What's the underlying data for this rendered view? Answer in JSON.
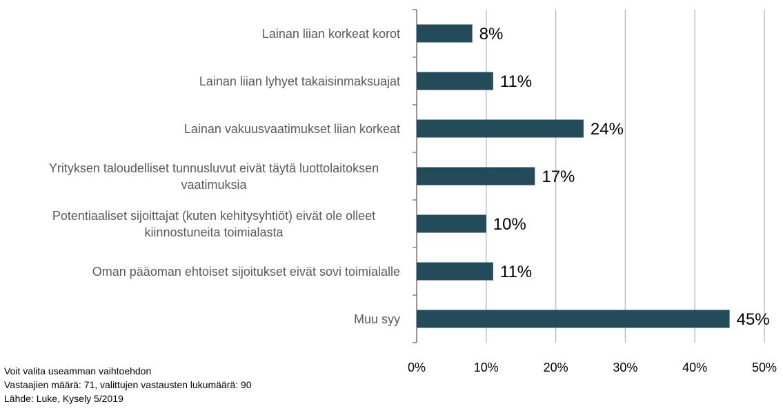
{
  "chart_data": {
    "type": "barh",
    "categories": [
      "Lainan liian korkeat korot",
      "Lainan liian lyhyet takaisinmaksuajat",
      "Lainan vakuusvaatimukset liian korkeat",
      "Yrityksen taloudelliset tunnusluvut eivät täytä luottolaitoksen vaatimuksia",
      "Potentiaaliset sijoittajat (kuten kehitysyhtiöt) eivät ole olleet kiinnostuneita toimialasta",
      "Oman pääoman ehtoiset sijoitukset eivät sovi toimialalle",
      "Muu syy"
    ],
    "values": [
      8,
      11,
      24,
      17,
      10,
      11,
      45
    ],
    "value_labels": [
      "8%",
      "11%",
      "24%",
      "17%",
      "10%",
      "11%",
      "45%"
    ],
    "color": "#234b5a",
    "xlim": [
      0,
      50
    ],
    "xticks": [
      {
        "value": 0,
        "label": "0%"
      },
      {
        "value": 10,
        "label": "10%"
      },
      {
        "value": 20,
        "label": "20%"
      },
      {
        "value": 30,
        "label": "30%"
      },
      {
        "value": 40,
        "label": "40%"
      },
      {
        "value": 50,
        "label": "50%"
      }
    ],
    "grid": true,
    "notes": [
      "Voit valita useamman vaihtoehdon",
      "Vastaajien määrä: 71, valittujen vastausten lukumäärä: 90",
      "Lähde: Luke, Kysely 5/2019"
    ]
  }
}
